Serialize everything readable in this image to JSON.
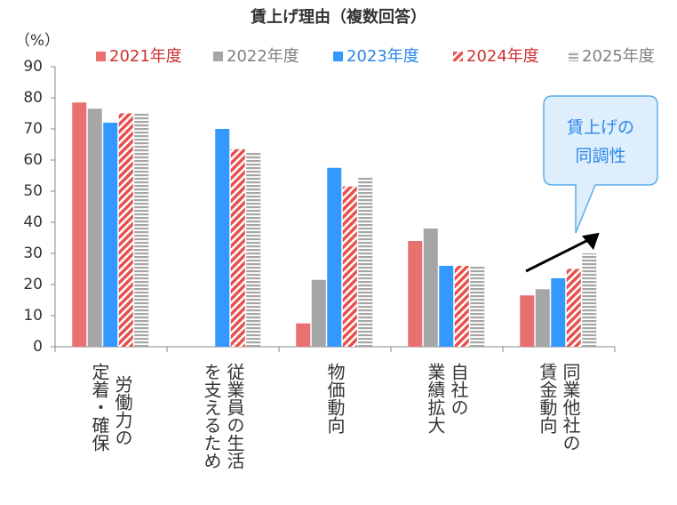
{
  "chart_data": {
    "type": "bar",
    "title": "賃上げ理由（複数回答）",
    "y_unit": "（%）",
    "categories": [
      [
        "労働力の",
        "定着・確保"
      ],
      [
        "従業員の生活",
        "を支えるため"
      ],
      [
        "物価動向"
      ],
      [
        "自社の",
        "業績拡大"
      ],
      [
        "同業他社の",
        "賃金動向"
      ]
    ],
    "series": [
      {
        "name": "2021年度",
        "color": "#e8706e",
        "label_color": "#d03030",
        "pattern": "solid",
        "values": [
          78.5,
          null,
          7.5,
          34,
          16.5
        ]
      },
      {
        "name": "2022年度",
        "color": "#a6a6a6",
        "label_color": "#808080",
        "pattern": "solid",
        "values": [
          76.5,
          null,
          21.5,
          38,
          18.5
        ]
      },
      {
        "name": "2023年度",
        "color": "#3399ff",
        "label_color": "#2a88e8",
        "pattern": "solid",
        "values": [
          72,
          70,
          57.5,
          26,
          22
        ]
      },
      {
        "name": "2024年度",
        "color": "#e8504e",
        "label_color": "#d03030",
        "pattern": "diagonal",
        "values": [
          75,
          63.5,
          51.5,
          26,
          25
        ]
      },
      {
        "name": "2025年度",
        "color": "#a6a6a6",
        "label_color": "#808080",
        "pattern": "horizontal",
        "values": [
          75,
          62.5,
          54.5,
          26,
          30
        ]
      }
    ],
    "ylim": [
      0,
      90
    ],
    "yticks": [
      0,
      10,
      20,
      30,
      40,
      50,
      60,
      70,
      80,
      90
    ],
    "annotation": [
      "賃上げの",
      "同調性"
    ]
  }
}
